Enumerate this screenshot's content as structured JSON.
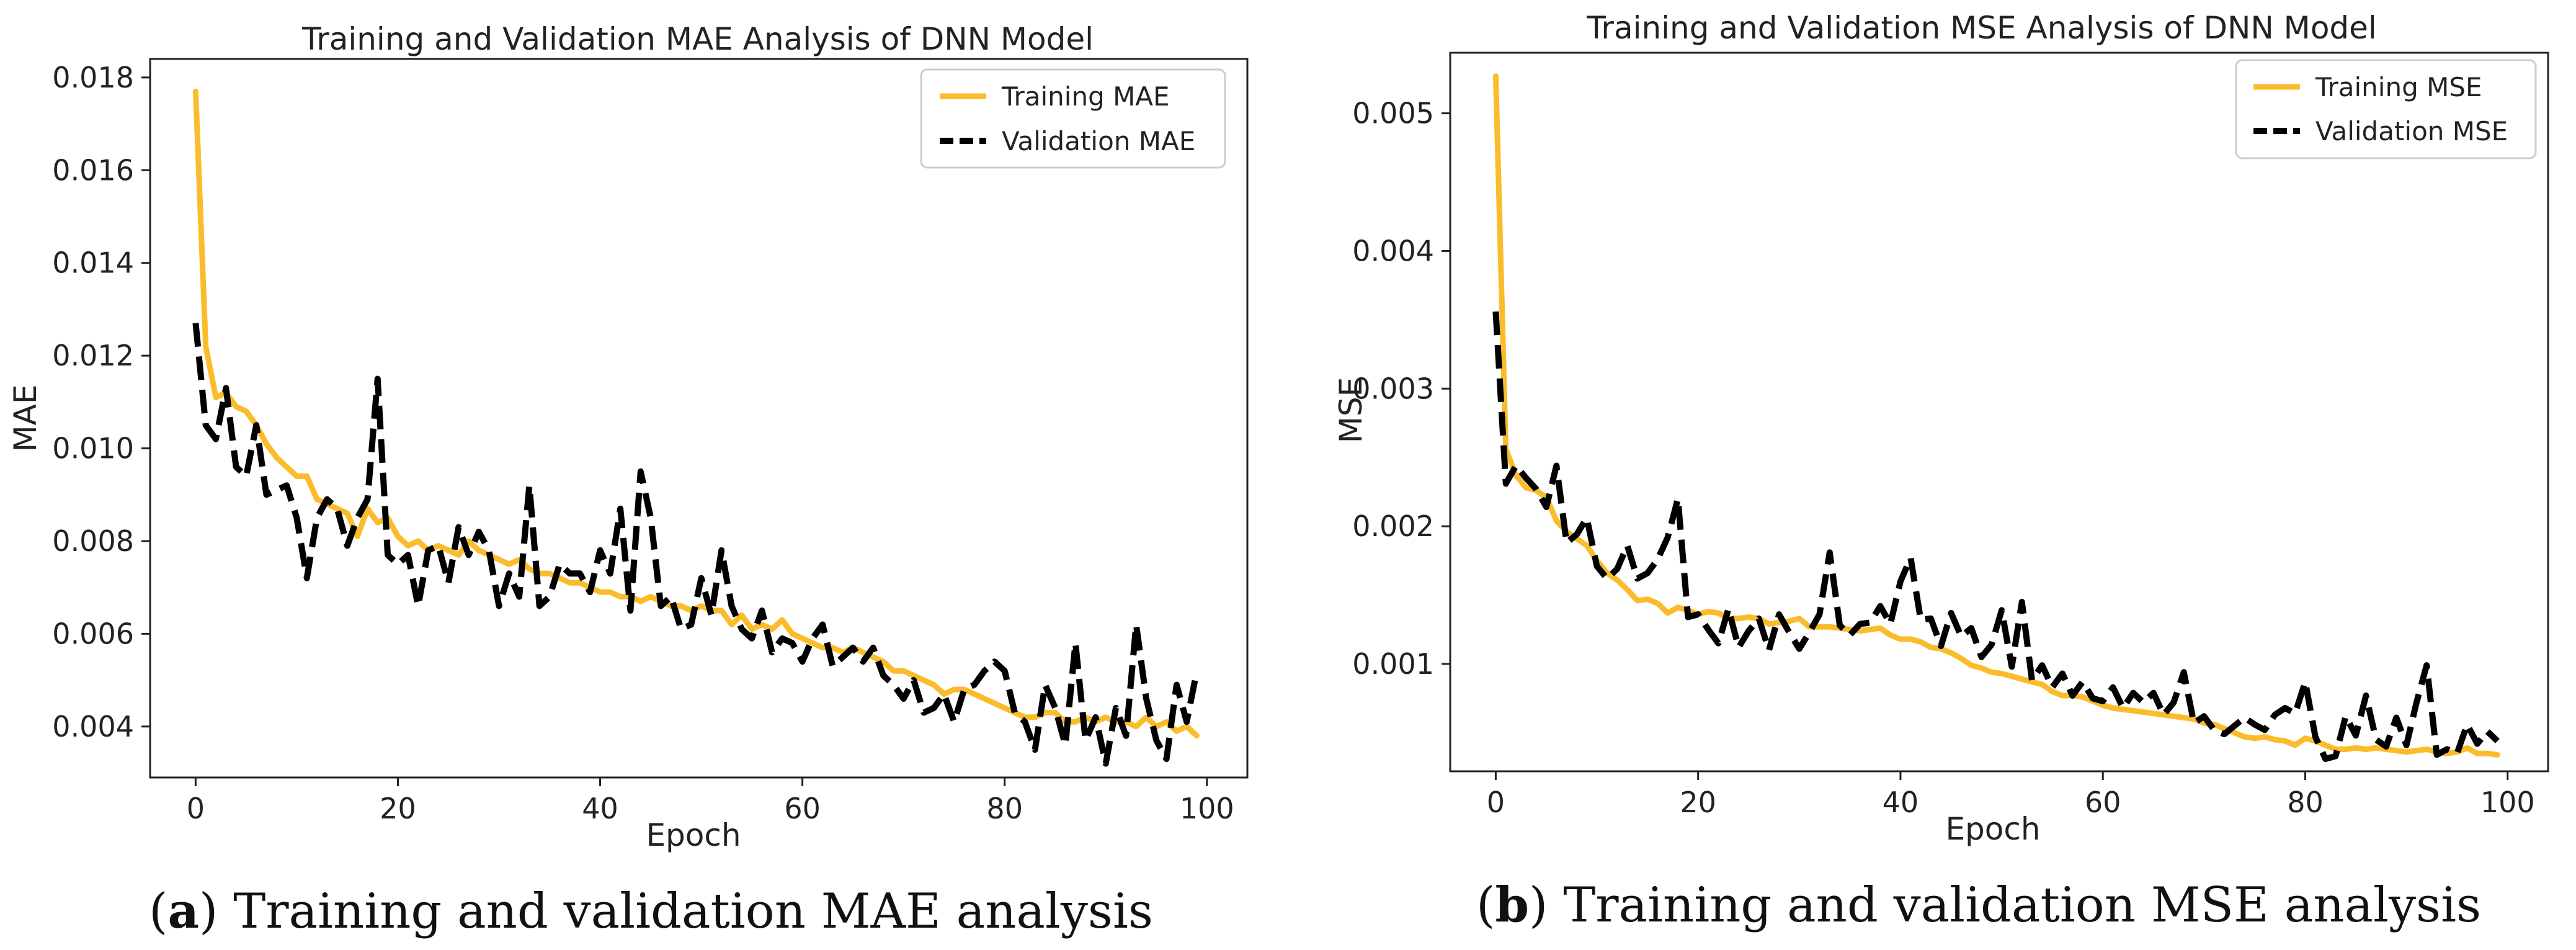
{
  "chart_data": [
    {
      "type": "line",
      "title": "Training and Validation MAE Analysis of DNN Model",
      "xlabel": "Epoch",
      "ylabel": "MAE",
      "xlim": [
        -4.5,
        104
      ],
      "ylim": [
        0.0029,
        0.0184
      ],
      "x_ticks": [
        0,
        20,
        40,
        60,
        80,
        100
      ],
      "y_ticks": [
        0.004,
        0.006,
        0.008,
        0.01,
        0.012,
        0.014,
        0.016,
        0.018
      ],
      "y_tick_labels": [
        "0.004",
        "0.006",
        "0.008",
        "0.010",
        "0.012",
        "0.014",
        "0.016",
        "0.018"
      ],
      "legend_position": "top-right",
      "caption": {
        "letter": "a",
        "text": " Training and validation MAE analysis"
      },
      "series": [
        {
          "name": "Training MAE",
          "color": "#FBBC2C",
          "style": "solid",
          "values": [
            0.0177,
            0.0122,
            0.0111,
            0.0112,
            0.0109,
            0.0108,
            0.0105,
            0.0101,
            0.0098,
            0.0096,
            0.0094,
            0.0094,
            0.0089,
            0.0088,
            0.0087,
            0.0086,
            0.0081,
            0.0087,
            0.0084,
            0.0085,
            0.0081,
            0.0079,
            0.008,
            0.0078,
            0.0079,
            0.0078,
            0.0077,
            0.008,
            0.0078,
            0.0077,
            0.0076,
            0.0075,
            0.0076,
            0.0074,
            0.0073,
            0.0073,
            0.0072,
            0.0071,
            0.0071,
            0.007,
            0.0069,
            0.0069,
            0.0068,
            0.0068,
            0.0067,
            0.0068,
            0.0067,
            0.0066,
            0.0066,
            0.0065,
            0.0066,
            0.0065,
            0.0065,
            0.0062,
            0.0064,
            0.0061,
            0.0062,
            0.0061,
            0.0063,
            0.006,
            0.0059,
            0.0058,
            0.0057,
            0.0057,
            0.0056,
            0.0057,
            0.0056,
            0.0055,
            0.0054,
            0.0052,
            0.0052,
            0.0051,
            0.005,
            0.0049,
            0.0047,
            0.0048,
            0.0048,
            0.0047,
            0.0046,
            0.0045,
            0.0044,
            0.0043,
            0.0042,
            0.0042,
            0.0043,
            0.0043,
            0.0041,
            0.0041,
            0.0042,
            0.0041,
            0.0042,
            0.0041,
            0.0041,
            0.004,
            0.0042,
            0.004,
            0.0041,
            0.0039,
            0.004,
            0.0038
          ]
        },
        {
          "name": "Validation MAE",
          "color": "#000000",
          "style": "dashed",
          "values": [
            0.0127,
            0.0105,
            0.0102,
            0.0113,
            0.0096,
            0.0094,
            0.0105,
            0.009,
            0.0091,
            0.0092,
            0.0085,
            0.0072,
            0.0085,
            0.0089,
            0.0087,
            0.0079,
            0.0085,
            0.0089,
            0.0115,
            0.0077,
            0.0075,
            0.0077,
            0.0066,
            0.0078,
            0.0079,
            0.0071,
            0.0083,
            0.0077,
            0.0082,
            0.0078,
            0.0066,
            0.0073,
            0.0068,
            0.0092,
            0.0066,
            0.0068,
            0.0075,
            0.0073,
            0.0073,
            0.0069,
            0.0078,
            0.0073,
            0.0087,
            0.0065,
            0.0095,
            0.0085,
            0.0066,
            0.0068,
            0.0061,
            0.0062,
            0.0072,
            0.0064,
            0.0078,
            0.0066,
            0.0061,
            0.0059,
            0.0065,
            0.0056,
            0.0059,
            0.0058,
            0.0054,
            0.0059,
            0.0062,
            0.0053,
            0.0055,
            0.0057,
            0.0054,
            0.0057,
            0.0051,
            0.0049,
            0.0046,
            0.005,
            0.0043,
            0.0044,
            0.0047,
            0.0041,
            0.0048,
            0.0049,
            0.0052,
            0.0054,
            0.0052,
            0.0043,
            0.0041,
            0.0035,
            0.0049,
            0.0044,
            0.0036,
            0.0058,
            0.0037,
            0.0042,
            0.0032,
            0.0044,
            0.0038,
            0.0062,
            0.0046,
            0.0037,
            0.0033,
            0.0049,
            0.0041,
            0.0052
          ]
        }
      ]
    },
    {
      "type": "line",
      "title": "Training and Validation MSE Analysis of DNN Model",
      "xlabel": "Epoch",
      "ylabel": "MSE",
      "xlim": [
        -4.5,
        104
      ],
      "ylim": [
        0.00022,
        0.00544
      ],
      "x_ticks": [
        0,
        20,
        40,
        60,
        80,
        100
      ],
      "y_ticks": [
        0.001,
        0.002,
        0.003,
        0.004,
        0.005
      ],
      "y_tick_labels": [
        "0.001",
        "0.002",
        "0.003",
        "0.004",
        "0.005"
      ],
      "legend_position": "top-right",
      "caption": {
        "letter": "b",
        "text": " Training and validation MSE analysis"
      },
      "series": [
        {
          "name": "Training MSE",
          "color": "#FBBC2C",
          "style": "solid",
          "values": [
            0.00527,
            0.00256,
            0.00237,
            0.00228,
            0.00226,
            0.00221,
            0.00204,
            0.00196,
            0.00191,
            0.00186,
            0.00175,
            0.00166,
            0.00161,
            0.00154,
            0.00146,
            0.00147,
            0.00144,
            0.00137,
            0.00141,
            0.00139,
            0.00136,
            0.00138,
            0.00137,
            0.00133,
            0.00133,
            0.00134,
            0.00133,
            0.00129,
            0.0013,
            0.00131,
            0.00133,
            0.00127,
            0.00127,
            0.00127,
            0.00126,
            0.00125,
            0.00124,
            0.00125,
            0.00126,
            0.00121,
            0.00118,
            0.00118,
            0.00116,
            0.00112,
            0.00111,
            0.00108,
            0.00104,
            0.00099,
            0.00097,
            0.00094,
            0.00093,
            0.00091,
            0.00089,
            0.00087,
            0.00085,
            0.0008,
            0.00077,
            0.00077,
            0.00076,
            0.00073,
            0.0007,
            0.00068,
            0.00067,
            0.00066,
            0.00065,
            0.00064,
            0.00063,
            0.00062,
            0.00061,
            0.0006,
            0.00057,
            0.00056,
            0.00053,
            0.0005,
            0.00047,
            0.00046,
            0.00047,
            0.00045,
            0.00044,
            0.00041,
            0.00046,
            0.00044,
            0.00041,
            0.00038,
            0.00038,
            0.00039,
            0.00038,
            0.00039,
            0.00038,
            0.00037,
            0.00036,
            0.00037,
            0.00038,
            0.00036,
            0.00035,
            0.00036,
            0.00039,
            0.00035,
            0.00035,
            0.00034
          ]
        },
        {
          "name": "Validation MSE",
          "color": "#000000",
          "style": "dashed",
          "values": [
            0.00356,
            0.00231,
            0.00244,
            0.00235,
            0.00227,
            0.00214,
            0.00244,
            0.00188,
            0.00194,
            0.00206,
            0.00171,
            0.00162,
            0.00169,
            0.00186,
            0.00162,
            0.00166,
            0.00176,
            0.00192,
            0.0022,
            0.00134,
            0.00136,
            0.00125,
            0.00115,
            0.0014,
            0.00112,
            0.00124,
            0.00133,
            0.0011,
            0.00136,
            0.00123,
            0.00111,
            0.00123,
            0.00136,
            0.00181,
            0.00128,
            0.00121,
            0.00129,
            0.0013,
            0.00142,
            0.00129,
            0.0016,
            0.00177,
            0.00132,
            0.00133,
            0.00113,
            0.00137,
            0.0012,
            0.00126,
            0.00105,
            0.00114,
            0.00139,
            0.00098,
            0.00145,
            0.00088,
            0.00099,
            0.00083,
            0.00093,
            0.00077,
            0.00087,
            0.00075,
            0.00073,
            0.00083,
            0.00068,
            0.00079,
            0.00072,
            0.00079,
            0.00063,
            0.00072,
            0.00094,
            0.00057,
            0.00062,
            0.00052,
            0.00049,
            0.00055,
            0.00061,
            0.00056,
            0.00052,
            0.00063,
            0.00068,
            0.00064,
            0.00087,
            0.00047,
            0.00031,
            0.00033,
            0.00062,
            0.00048,
            0.00077,
            0.00045,
            0.0004,
            0.00061,
            0.00041,
            0.00072,
            0.00099,
            0.00034,
            0.00038,
            0.00035,
            0.00056,
            0.00042,
            0.00051,
            0.00044
          ]
        }
      ]
    }
  ]
}
